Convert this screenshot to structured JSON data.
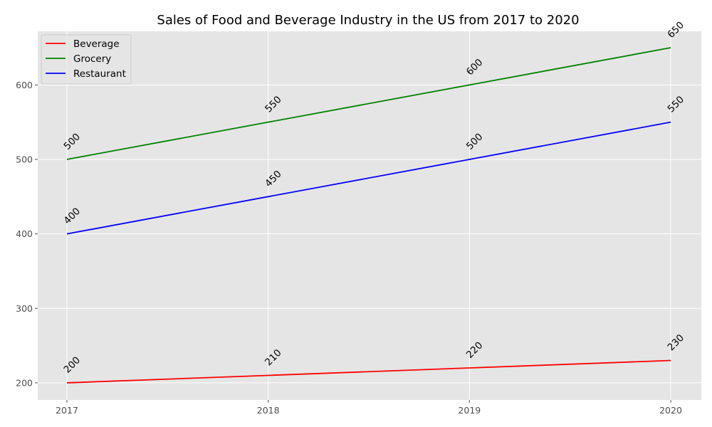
{
  "chart_data": {
    "type": "line",
    "title": "Sales of Food and Beverage Industry in the US from 2017 to 2020",
    "xlabel": "",
    "ylabel": "",
    "x": [
      "2017",
      "2018",
      "2019",
      "2020"
    ],
    "series": [
      {
        "name": "Beverage",
        "color": "#ff0000",
        "values": [
          200,
          210,
          220,
          230
        ]
      },
      {
        "name": "Grocery",
        "color": "#008000",
        "values": [
          500,
          550,
          600,
          650
        ]
      },
      {
        "name": "Restaurant",
        "color": "#0000ff",
        "values": [
          400,
          450,
          500,
          550
        ]
      }
    ],
    "yticks": [
      200,
      300,
      400,
      500,
      600
    ],
    "ylim": [
      177,
      672
    ],
    "grid": true,
    "legend": "top-left",
    "data_labels": true,
    "style": {
      "background": "#e5e5e5",
      "grid_color": "#ffffff"
    }
  }
}
